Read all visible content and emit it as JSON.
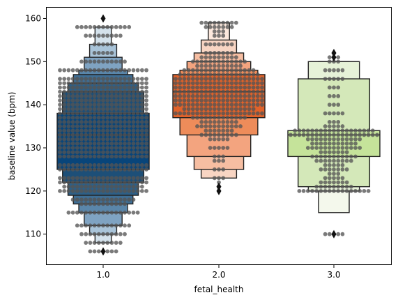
{
  "chart_data": {
    "type": "boxen",
    "xlabel": "fetal_health",
    "ylabel": "baseline value (bpm)",
    "categories": [
      "1.0",
      "2.0",
      "3.0"
    ],
    "ylim": [
      103,
      162.5
    ],
    "yticks": [
      110,
      120,
      130,
      140,
      150,
      160
    ],
    "ytick_labels": [
      "110",
      "120",
      "130",
      "140",
      "150",
      "160"
    ],
    "grid": false,
    "legend": "none",
    "swarm_color": "#555555",
    "series": [
      {
        "category": "1.0",
        "color": "#0b4a7e",
        "boxes": [
          {
            "low": 125,
            "high": 138,
            "color": "#08457a"
          },
          {
            "low": 122,
            "high": 143,
            "color": "#1d4f78"
          },
          {
            "low": 119,
            "high": 145,
            "color": "#2e5f86"
          },
          {
            "low": 117,
            "high": 147,
            "color": "#3f6e94"
          },
          {
            "low": 115,
            "high": 148,
            "color": "#5a86aa"
          },
          {
            "low": 112,
            "high": 151,
            "color": "#7fa3c2"
          },
          {
            "low": 110,
            "high": 154,
            "color": "#a9c4d9"
          },
          {
            "low": 108,
            "high": 158,
            "color": "#d4e2ec"
          }
        ],
        "median": 133,
        "outliers": [
          106,
          160
        ],
        "swarm": [
          {
            "value": 106,
            "count": 7
          },
          {
            "value": 108,
            "count": 9
          },
          {
            "value": 110,
            "count": 11
          },
          {
            "value": 112,
            "count": 13
          },
          {
            "value": 115,
            "count": 17
          },
          {
            "value": 117,
            "count": 11
          },
          {
            "value": 118,
            "count": 15
          },
          {
            "value": 120,
            "count": 21
          },
          {
            "value": 121,
            "count": 19
          },
          {
            "value": 122,
            "count": 21
          },
          {
            "value": 123,
            "count": 21
          },
          {
            "value": 125,
            "count": 21
          },
          {
            "value": 126,
            "count": 21
          },
          {
            "value": 128,
            "count": 21
          },
          {
            "value": 129,
            "count": 21
          },
          {
            "value": 130,
            "count": 21
          },
          {
            "value": 131,
            "count": 21
          },
          {
            "value": 132,
            "count": 21
          },
          {
            "value": 133,
            "count": 21
          },
          {
            "value": 134,
            "count": 21
          },
          {
            "value": 135,
            "count": 21
          },
          {
            "value": 136,
            "count": 21
          },
          {
            "value": 137,
            "count": 21
          },
          {
            "value": 138,
            "count": 21
          },
          {
            "value": 139,
            "count": 21
          },
          {
            "value": 140,
            "count": 21
          },
          {
            "value": 141,
            "count": 21
          },
          {
            "value": 142,
            "count": 21
          },
          {
            "value": 143,
            "count": 21
          },
          {
            "value": 144,
            "count": 21
          },
          {
            "value": 145,
            "count": 21
          },
          {
            "value": 146,
            "count": 21
          },
          {
            "value": 148,
            "count": 21
          },
          {
            "value": 150,
            "count": 11
          },
          {
            "value": 152,
            "count": 5
          },
          {
            "value": 154,
            "count": 5
          },
          {
            "value": 156,
            "count": 9
          },
          {
            "value": 158,
            "count": 13
          },
          {
            "value": 160,
            "count": 1
          }
        ]
      },
      {
        "category": "2.0",
        "color": "#e0622a",
        "boxes": [
          {
            "low": 137,
            "high": 147,
            "color": "#e0622a"
          },
          {
            "low": 133,
            "high": 148,
            "color": "#ee8c5a"
          },
          {
            "low": 128,
            "high": 150,
            "color": "#f3a47f"
          },
          {
            "low": 125,
            "high": 152,
            "color": "#f6bea2"
          },
          {
            "low": 123,
            "high": 155,
            "color": "#f8d5c3"
          },
          {
            "low": 123,
            "high": 159,
            "color": "#fbe8dd"
          }
        ],
        "median": 143,
        "outliers": [
          120,
          121
        ],
        "swarm": [
          {
            "value": 120,
            "count": 1
          },
          {
            "value": 121,
            "count": 1
          },
          {
            "value": 122,
            "count": 1
          },
          {
            "value": 123,
            "count": 3
          },
          {
            "value": 125,
            "count": 3
          },
          {
            "value": 127,
            "count": 3
          },
          {
            "value": 128,
            "count": 3
          },
          {
            "value": 130,
            "count": 5
          },
          {
            "value": 132,
            "count": 5
          },
          {
            "value": 133,
            "count": 9
          },
          {
            "value": 134,
            "count": 7
          },
          {
            "value": 135,
            "count": 11
          },
          {
            "value": 136,
            "count": 9
          },
          {
            "value": 137,
            "count": 13
          },
          {
            "value": 138,
            "count": 21
          },
          {
            "value": 139,
            "count": 17
          },
          {
            "value": 140,
            "count": 21
          },
          {
            "value": 141,
            "count": 21
          },
          {
            "value": 142,
            "count": 21
          },
          {
            "value": 143,
            "count": 21
          },
          {
            "value": 144,
            "count": 21
          },
          {
            "value": 145,
            "count": 21
          },
          {
            "value": 146,
            "count": 21
          },
          {
            "value": 147,
            "count": 19
          },
          {
            "value": 148,
            "count": 17
          },
          {
            "value": 149,
            "count": 11
          },
          {
            "value": 150,
            "count": 13
          },
          {
            "value": 151,
            "count": 9
          },
          {
            "value": 152,
            "count": 7
          },
          {
            "value": 154,
            "count": 7
          },
          {
            "value": 156,
            "count": 3
          },
          {
            "value": 157,
            "count": 3
          },
          {
            "value": 158,
            "count": 7
          },
          {
            "value": 159,
            "count": 9
          }
        ]
      },
      {
        "category": "3.0",
        "color": "#bfe08d",
        "boxes": [
          {
            "low": 128,
            "high": 134,
            "color": "#c5e39a"
          },
          {
            "low": 121,
            "high": 146,
            "color": "#d4e8b9"
          },
          {
            "low": 120,
            "high": 150,
            "color": "#e6f2d8"
          },
          {
            "low": 115,
            "high": 150,
            "color": "#f4f8ec"
          }
        ],
        "median": 133,
        "outliers": [
          110,
          151,
          152
        ],
        "swarm": [
          {
            "value": 110,
            "count": 5
          },
          {
            "value": 120,
            "count": 17
          },
          {
            "value": 121,
            "count": 9
          },
          {
            "value": 122,
            "count": 7
          },
          {
            "value": 123,
            "count": 5
          },
          {
            "value": 124,
            "count": 3
          },
          {
            "value": 125,
            "count": 7
          },
          {
            "value": 126,
            "count": 5
          },
          {
            "value": 127,
            "count": 9
          },
          {
            "value": 128,
            "count": 11
          },
          {
            "value": 129,
            "count": 7
          },
          {
            "value": 130,
            "count": 13
          },
          {
            "value": 131,
            "count": 11
          },
          {
            "value": 132,
            "count": 13
          },
          {
            "value": 133,
            "count": 21
          },
          {
            "value": 134,
            "count": 19
          },
          {
            "value": 135,
            "count": 5
          },
          {
            "value": 136,
            "count": 3
          },
          {
            "value": 138,
            "count": 5
          },
          {
            "value": 140,
            "count": 3
          },
          {
            "value": 142,
            "count": 3
          },
          {
            "value": 144,
            "count": 3
          },
          {
            "value": 146,
            "count": 5
          },
          {
            "value": 148,
            "count": 5
          },
          {
            "value": 150,
            "count": 3
          },
          {
            "value": 151,
            "count": 3
          },
          {
            "value": 152,
            "count": 1
          }
        ]
      }
    ]
  }
}
